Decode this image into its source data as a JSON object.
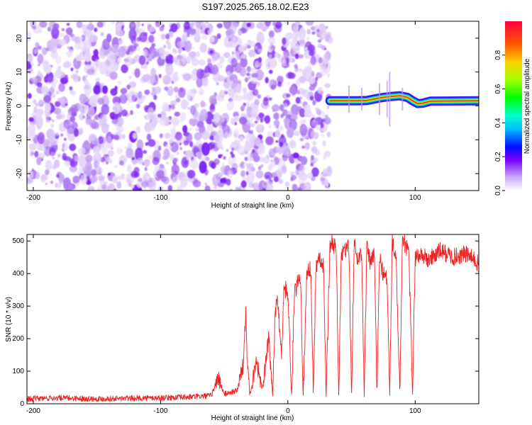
{
  "title": "S197.2025.265.18.02.E23",
  "chart_data": [
    {
      "type": "heatmap",
      "xlabel": "Height of straight line (km)",
      "ylabel": "Frequency (Hz)",
      "xlim": [
        -205,
        150
      ],
      "ylim": [
        -25,
        25
      ],
      "xticks": [
        -200,
        -100,
        0,
        100
      ],
      "yticks": [
        -20,
        -10,
        0,
        10,
        20
      ],
      "noise_region": {
        "x_range": [
          -205,
          33
        ],
        "freq_range": [
          -25,
          25
        ]
      },
      "signal_trace": {
        "x_range": [
          33,
          150
        ],
        "points": [
          [
            33,
            1.5
          ],
          [
            40,
            1.5
          ],
          [
            47,
            1.5
          ],
          [
            55,
            1.5
          ],
          [
            62,
            1.6
          ],
          [
            70,
            2.2
          ],
          [
            75,
            2.5
          ],
          [
            82,
            2.8
          ],
          [
            88,
            3.0
          ],
          [
            94,
            2.5
          ],
          [
            98,
            1.5
          ],
          [
            102,
            0.7
          ],
          [
            106,
            0.8
          ],
          [
            112,
            1.4
          ],
          [
            150,
            1.5
          ]
        ]
      },
      "colorbar": {
        "label": "Normalized spectral amplitude",
        "range": [
          0.0,
          1.0
        ],
        "ticks": [
          "0.0",
          "0.2",
          "0.4",
          "0.6",
          "0.8"
        ]
      }
    },
    {
      "type": "line",
      "xlabel": "Height of straight line (km)",
      "ylabel": "SNR (10 * v/v)",
      "xlim": [
        -205,
        150
      ],
      "ylim": [
        0,
        520
      ],
      "xticks": [
        -200,
        -100,
        0,
        100
      ],
      "yticks": [
        0,
        100,
        200,
        300,
        400,
        500
      ],
      "series": [
        {
          "name": "SNR",
          "color": "#ee2222",
          "x": [
            -205,
            -180,
            -150,
            -120,
            -100,
            -80,
            -60,
            -55,
            -50,
            -40,
            -35,
            -33,
            -32,
            -30,
            -28,
            -25,
            -20,
            -15,
            -12,
            -10,
            -8,
            -5,
            -3,
            0,
            3,
            5,
            8,
            10,
            12,
            15,
            18,
            20,
            22,
            25,
            28,
            30,
            33,
            35,
            38,
            40,
            42,
            45,
            48,
            50,
            52,
            55,
            58,
            60,
            62,
            65,
            68,
            70,
            72,
            75,
            78,
            80,
            82,
            85,
            88,
            90,
            92,
            95,
            98,
            100,
            105,
            110,
            120,
            130,
            140,
            150
          ],
          "y": [
            15,
            18,
            15,
            17,
            18,
            20,
            25,
            80,
            30,
            40,
            120,
            300,
            150,
            30,
            60,
            140,
            40,
            200,
            30,
            280,
            320,
            150,
            360,
            340,
            20,
            330,
            380,
            400,
            20,
            410,
            410,
            20,
            430,
            440,
            420,
            20,
            480,
            500,
            470,
            20,
            460,
            470,
            480,
            20,
            490,
            440,
            470,
            20,
            480,
            430,
            460,
            20,
            450,
            400,
            380,
            20,
            500,
            440,
            20,
            500,
            490,
            460,
            30,
            450,
            460,
            440,
            470,
            450,
            460,
            430
          ]
        }
      ]
    }
  ]
}
